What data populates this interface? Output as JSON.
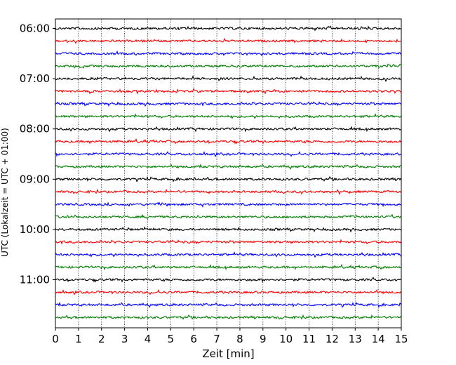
{
  "chart_data": {
    "type": "line",
    "title": "",
    "xlabel": "Zeit  [min]",
    "ylabel": "UTC (Lokalzeit = UTC + 01:00)",
    "xlim": [
      0,
      15
    ],
    "x_ticks": [
      0,
      1,
      2,
      3,
      4,
      5,
      6,
      7,
      8,
      9,
      10,
      11,
      12,
      13,
      14,
      15
    ],
    "y_tick_labels": [
      "06:00",
      "07:00",
      "08:00",
      "09:00",
      "10:00",
      "11:00"
    ],
    "y_tick_trace_index": [
      0,
      4,
      8,
      12,
      16,
      20
    ],
    "trace_interval_minutes": 15,
    "trace_colors": [
      "#000000",
      "#ff0000",
      "#0000ff",
      "#008000"
    ],
    "trace_count": 24,
    "grid": "vertical dotted at each minute",
    "legend": "none"
  }
}
